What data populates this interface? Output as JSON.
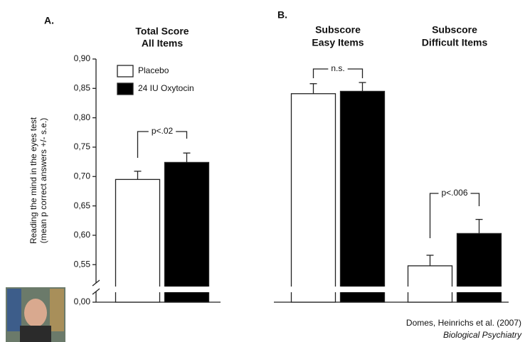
{
  "chart_data": [
    {
      "type": "bar",
      "panel": "A.",
      "categories": [
        [
          "Total Score",
          "All Items"
        ]
      ],
      "series": [
        {
          "name": "Placebo",
          "color": "#ffffff",
          "values": [
            0.695
          ],
          "errors": [
            0.014
          ]
        },
        {
          "name": "24 IU Oxytocin",
          "color": "#000000",
          "values": [
            0.724
          ],
          "errors": [
            0.016
          ]
        }
      ],
      "annotations": [
        {
          "text": "p<.02",
          "category": 0
        }
      ],
      "y_label": [
        "Reading the mind in the eyes test",
        "(mean p correct answers +/- s.e.)"
      ],
      "ylim": [
        0,
        0.9
      ],
      "ybreak": [
        0.01,
        0.52
      ],
      "yticks": [
        {
          "value": 0.9,
          "label": "0,90"
        },
        {
          "value": 0.85,
          "label": "0,85"
        },
        {
          "value": 0.8,
          "label": "0,80"
        },
        {
          "value": 0.75,
          "label": "0,75"
        },
        {
          "value": 0.7,
          "label": "0,70"
        },
        {
          "value": 0.65,
          "label": "0,65"
        },
        {
          "value": 0.6,
          "label": "0,60"
        },
        {
          "value": 0.55,
          "label": "0,55"
        },
        {
          "value": 0,
          "label": "0,00"
        }
      ],
      "legend": "top-left"
    },
    {
      "type": "bar",
      "panel": "B.",
      "categories": [
        [
          "Subscore",
          "Easy Items"
        ],
        [
          "Subscore",
          "Difficult Items"
        ]
      ],
      "series": [
        {
          "name": "Placebo",
          "color": "#ffffff",
          "values": [
            0.841,
            0.548
          ],
          "errors": [
            0.017,
            0.018
          ]
        },
        {
          "name": "24 IU Oxytocin",
          "color": "#000000",
          "values": [
            0.845,
            0.603
          ],
          "errors": [
            0.015,
            0.024
          ]
        }
      ],
      "annotations": [
        {
          "text": "n.s.",
          "category": 0
        },
        {
          "text": "p<.006",
          "category": 1
        }
      ],
      "ylim": [
        0,
        0.9
      ],
      "ybreak": [
        0.01,
        0.52
      ]
    }
  ],
  "citation": {
    "authors": "Domes, Heinrichs et al. (2007)",
    "journal": "Biological Psychiatry"
  }
}
